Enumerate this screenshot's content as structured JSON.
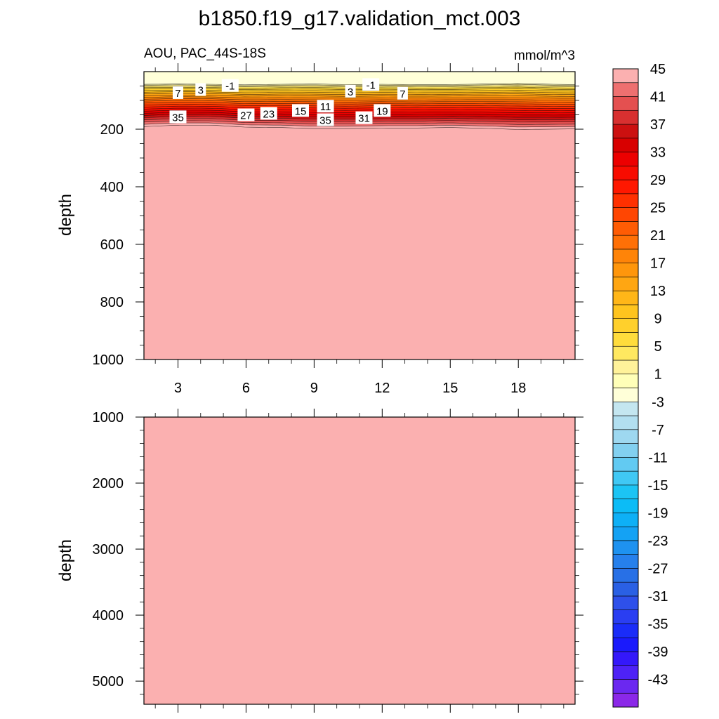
{
  "title": "b1850.f19_g17.validation_mct.003",
  "chart_data": {
    "type": "heatmap",
    "variable_label": "AOU, PAC_44S-18S",
    "units": "mmol/m^3",
    "upper_panel": {
      "ylabel": "depth",
      "ylim": [
        0,
        1000
      ],
      "y_ticks": [
        "200",
        "400",
        "600",
        "800",
        "1000"
      ],
      "y_tick_values": [
        200,
        400,
        600,
        800,
        1000
      ],
      "xlim": [
        1.5,
        20.5
      ],
      "x_ticks": [
        "3",
        "6",
        "9",
        "12",
        "15",
        "18"
      ],
      "x_tick_values": [
        3,
        6,
        9,
        12,
        15,
        18
      ],
      "background_value": 47,
      "profile_x": [
        1.5,
        3,
        4.5,
        6,
        7.5,
        9,
        10.5,
        12,
        13.5,
        15,
        16.5,
        18,
        19.5,
        20.5
      ],
      "negative_layer_base_depth": [
        44,
        43,
        44,
        46,
        44,
        43,
        45,
        44,
        45,
        45,
        43,
        41,
        44,
        45
      ],
      "high_layer_top_depth": [
        191,
        186,
        186,
        193,
        194,
        198,
        198,
        196,
        196,
        194,
        197,
        201,
        200,
        199
      ],
      "contour_labels": [
        {
          "text": "7",
          "x": 3.0,
          "depth": 73
        },
        {
          "text": "3",
          "x": 4.0,
          "depth": 62
        },
        {
          "text": "-1",
          "x": 5.3,
          "depth": 48
        },
        {
          "text": "35",
          "x": 3.0,
          "depth": 157
        },
        {
          "text": "27",
          "x": 6.0,
          "depth": 150
        },
        {
          "text": "23",
          "x": 7.0,
          "depth": 145
        },
        {
          "text": "15",
          "x": 8.4,
          "depth": 135
        },
        {
          "text": "11",
          "x": 9.5,
          "depth": 120
        },
        {
          "text": "3",
          "x": 10.6,
          "depth": 68
        },
        {
          "text": "-1",
          "x": 11.5,
          "depth": 45
        },
        {
          "text": "7",
          "x": 12.9,
          "depth": 75
        },
        {
          "text": "19",
          "x": 12.0,
          "depth": 135
        },
        {
          "text": "35",
          "x": 9.5,
          "depth": 167
        },
        {
          "text": "31",
          "x": 11.2,
          "depth": 160
        }
      ]
    },
    "lower_panel": {
      "ylabel": "depth",
      "ylim": [
        1000,
        5350
      ],
      "y_ticks": [
        "1000",
        "2000",
        "3000",
        "4000",
        "5000"
      ],
      "y_tick_values": [
        1000,
        2000,
        3000,
        4000,
        5000
      ],
      "xlim": [
        1.5,
        20.5
      ],
      "x_tick_values": [
        3,
        6,
        9,
        12,
        15,
        18
      ],
      "background_value": 47
    },
    "colorbar": {
      "levels": [
        -45,
        -43,
        -41,
        -39,
        -37,
        -35,
        -33,
        -31,
        -29,
        -27,
        -25,
        -23,
        -21,
        -19,
        -17,
        -15,
        -13,
        -11,
        -9,
        -7,
        -5,
        -3,
        -1,
        1,
        3,
        5,
        7,
        9,
        11,
        13,
        15,
        17,
        19,
        21,
        23,
        25,
        27,
        29,
        31,
        33,
        35,
        37,
        39,
        41,
        43,
        45
      ],
      "labels": [
        "45",
        "41",
        "37",
        "33",
        "29",
        "25",
        "21",
        "17",
        "13",
        "9",
        "5",
        "1",
        "-3",
        "-7",
        "-11",
        "-15",
        "-19",
        "-23",
        "-27",
        "-31",
        "-35",
        "-39",
        "-43"
      ],
      "colors": [
        "#8b28e8",
        "#6b28f0",
        "#4e22f6",
        "#3418fa",
        "#1a1afc",
        "#1a2cf8",
        "#2a3ef2",
        "#2e50ea",
        "#2a60e4",
        "#2870e6",
        "#2680ec",
        "#1e92f0",
        "#14a2f4",
        "#0eb0f6",
        "#0cbcf6",
        "#1cc4f4",
        "#40c8f4",
        "#62caf2",
        "#82d0f0",
        "#9ed8f0",
        "#b2dff0",
        "#c4e6f0",
        "#ffffd8",
        "#ffffb8",
        "#fff29a",
        "#ffe860",
        "#ffdc3c",
        "#ffd02c",
        "#ffc41e",
        "#ffb618",
        "#ffa612",
        "#ff960c",
        "#ff8408",
        "#ff7006",
        "#ff5c04",
        "#ff4602",
        "#ff3000",
        "#ff1800",
        "#f80c00",
        "#ec0000",
        "#d80000",
        "#cc1010",
        "#d83030",
        "#e45050",
        "#ee7070",
        "#fbb0b0"
      ]
    }
  }
}
